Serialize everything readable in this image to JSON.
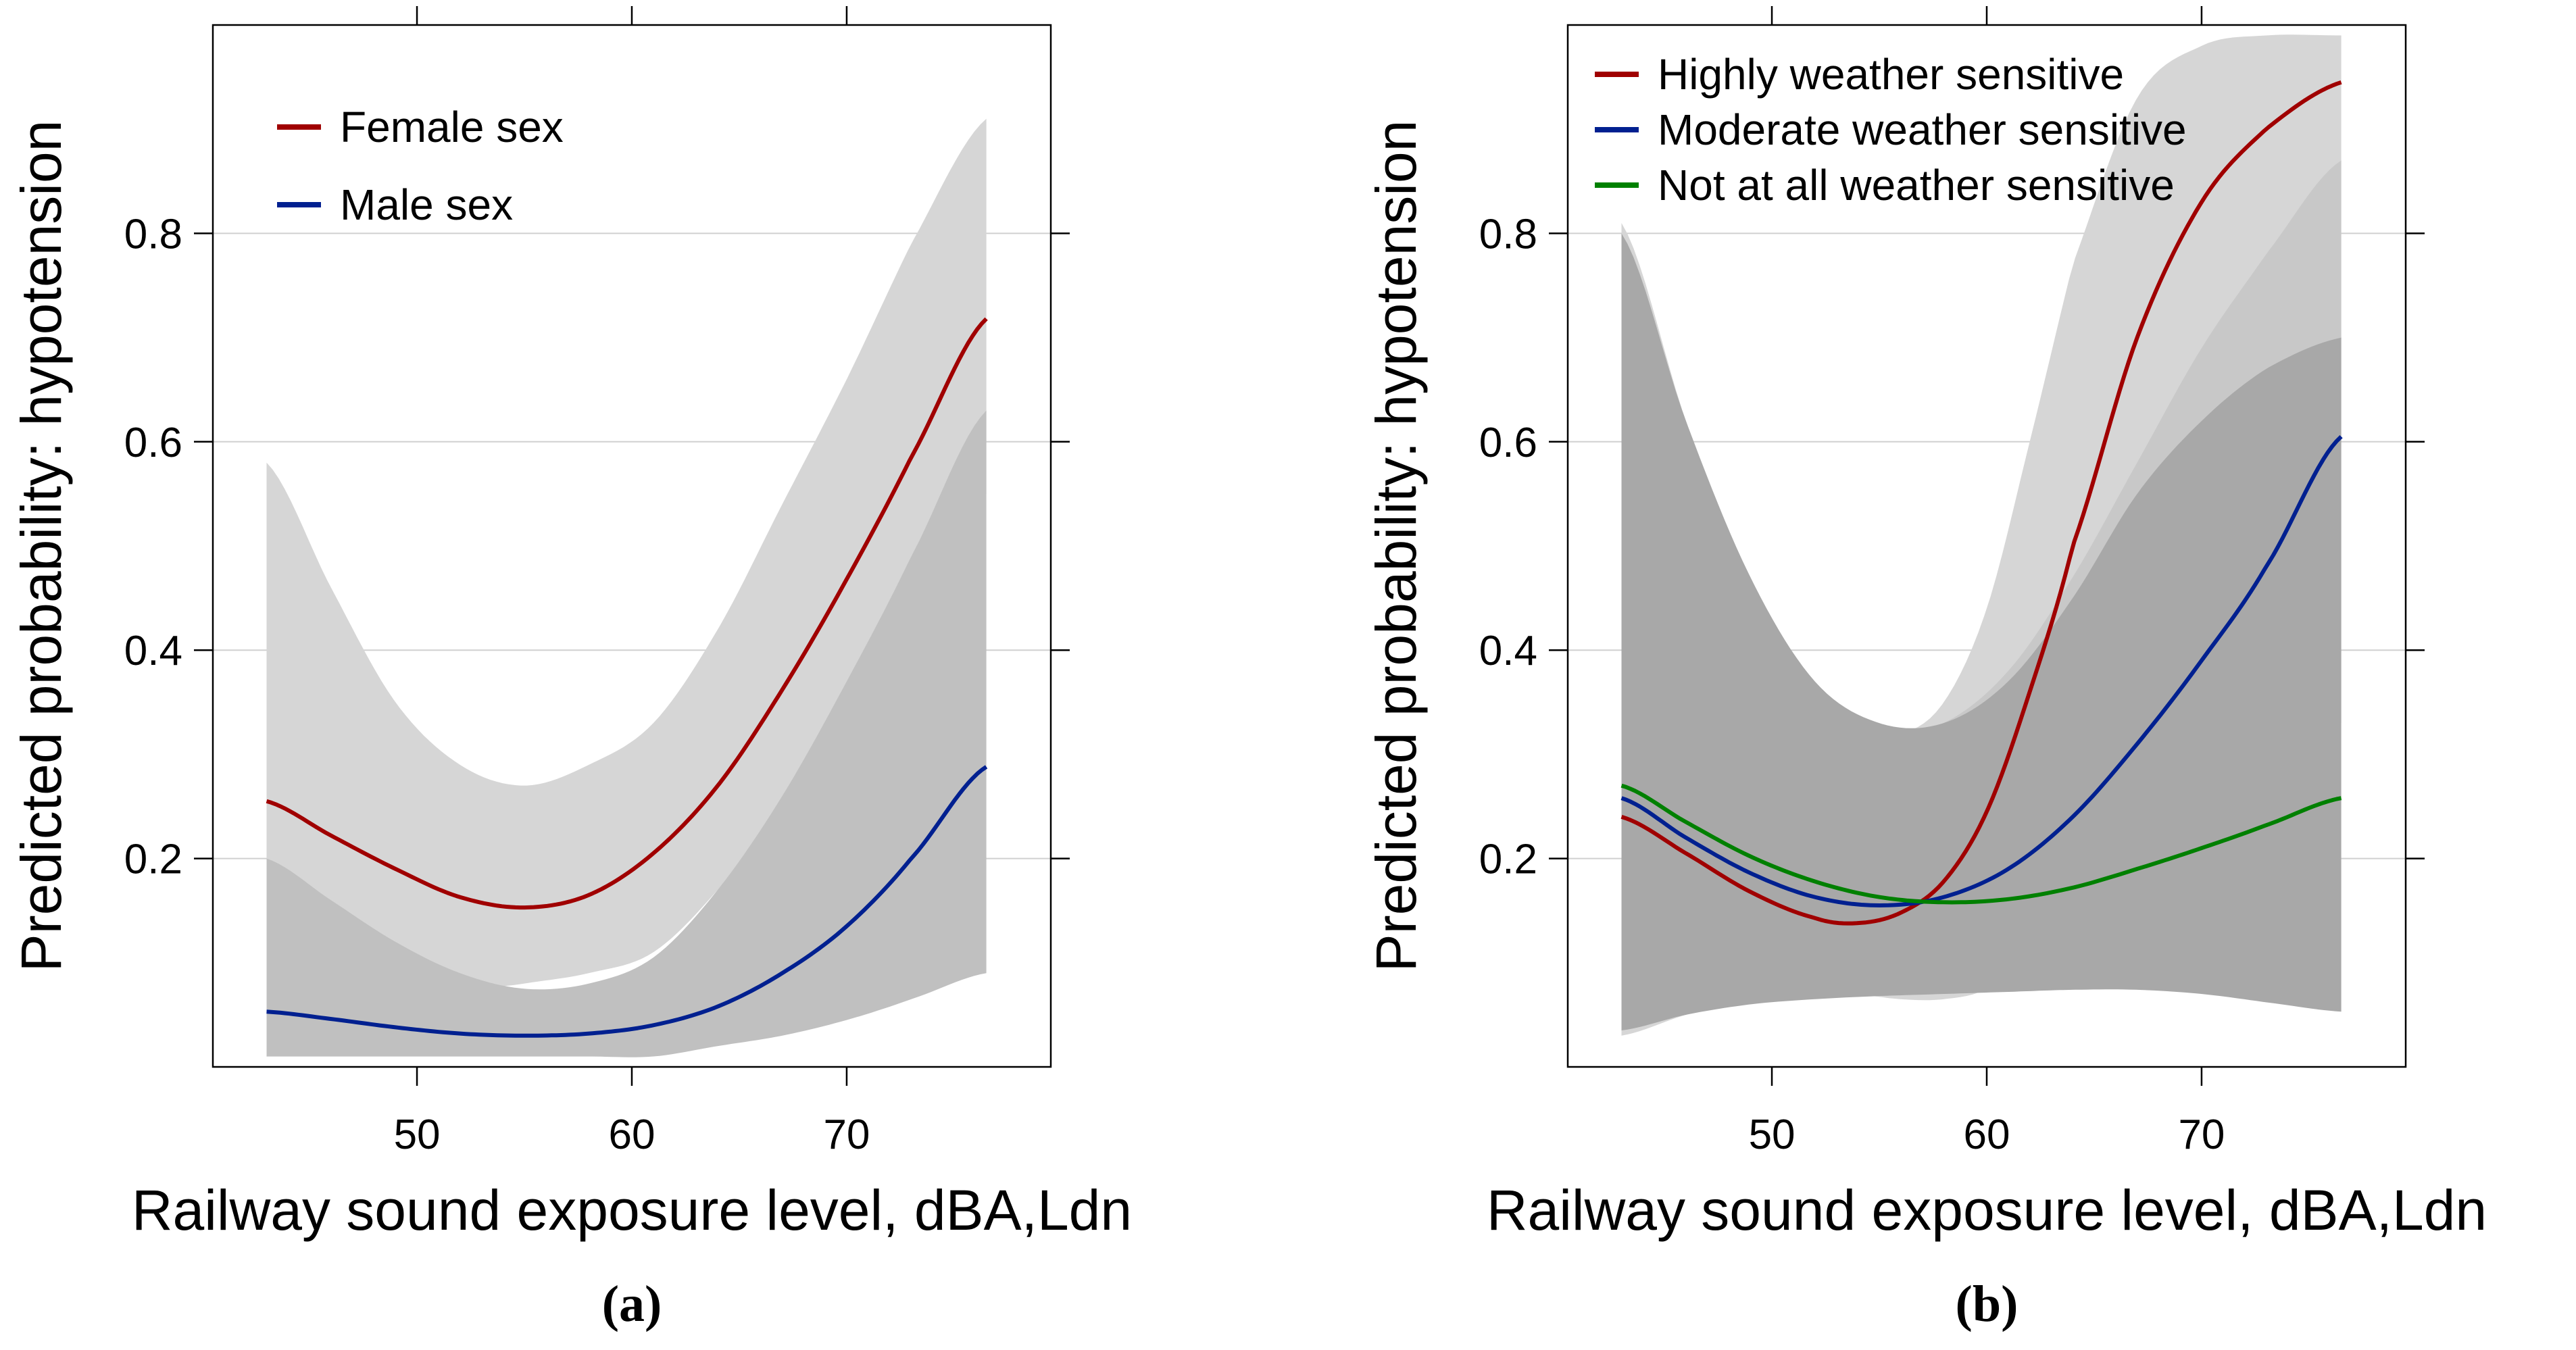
{
  "chart_data": [
    {
      "type": "line",
      "panel_label": "(a)",
      "xlabel": "Railway sound exposure level, dBA,Ldn",
      "ylabel": "Predicted probability: hypotension",
      "xlim": [
        40.5,
        79.5
      ],
      "ylim": [
        0.0,
        1.0
      ],
      "xticks": [
        50,
        60,
        70
      ],
      "yticks": [
        0.2,
        0.4,
        0.6,
        0.8
      ],
      "grid": "horizontal",
      "legend_position": "top-left",
      "series": [
        {
          "name": "Female sex",
          "color": "#a00000",
          "x": [
            43,
            46,
            49,
            52,
            55,
            58,
            61,
            64,
            67,
            70,
            73,
            76.5
          ],
          "y": [
            0.255,
            0.222,
            0.19,
            0.163,
            0.153,
            0.165,
            0.205,
            0.27,
            0.362,
            0.468,
            0.585,
            0.718
          ],
          "ci_lower": [
            0.01,
            0.02,
            0.04,
            0.07,
            0.08,
            0.09,
            0.11,
            0.17,
            0.25,
            0.34,
            0.45,
            0.55
          ],
          "ci_upper": [
            0.58,
            0.46,
            0.35,
            0.29,
            0.27,
            0.29,
            0.33,
            0.42,
            0.54,
            0.66,
            0.79,
            0.91
          ],
          "band_color": "#d6d6d6"
        },
        {
          "name": "Male sex",
          "color": "#002090",
          "x": [
            43,
            46,
            49,
            52,
            55,
            58,
            61,
            64,
            67,
            70,
            73,
            76.5
          ],
          "y": [
            0.053,
            0.046,
            0.038,
            0.032,
            0.03,
            0.032,
            0.04,
            0.058,
            0.09,
            0.135,
            0.2,
            0.288
          ],
          "ci_lower": [
            0.01,
            0.01,
            0.01,
            0.01,
            0.01,
            0.01,
            0.01,
            0.02,
            0.03,
            0.045,
            0.065,
            0.09
          ],
          "ci_upper": [
            0.2,
            0.16,
            0.12,
            0.09,
            0.075,
            0.08,
            0.105,
            0.17,
            0.26,
            0.37,
            0.49,
            0.63
          ],
          "band_color": "#c0c0c0"
        }
      ]
    },
    {
      "type": "line",
      "panel_label": "(b)",
      "xlabel": "Railway sound exposure level, dBA,Ldn",
      "ylabel": "Predicted probability: hypotension",
      "xlim": [
        40.5,
        79.5
      ],
      "ylim": [
        0.0,
        1.0
      ],
      "xticks": [
        50,
        60,
        70
      ],
      "yticks": [
        0.2,
        0.4,
        0.6,
        0.8
      ],
      "grid": "horizontal",
      "legend_position": "top",
      "series": [
        {
          "name": "Highly weather sensitive",
          "color": "#a00000",
          "x": [
            43,
            46,
            49,
            52,
            54,
            56,
            58,
            60,
            62,
            64,
            67,
            70,
            73,
            76.5
          ],
          "y": [
            0.24,
            0.205,
            0.168,
            0.143,
            0.138,
            0.148,
            0.178,
            0.245,
            0.36,
            0.5,
            0.7,
            0.83,
            0.9,
            0.945
          ],
          "ci_lower": [
            0.03,
            0.05,
            0.065,
            0.075,
            0.07,
            0.065,
            0.065,
            0.075,
            0.11,
            0.18,
            0.36,
            0.5,
            0.6,
            0.66
          ],
          "ci_upper": [
            0.81,
            0.62,
            0.46,
            0.36,
            0.33,
            0.32,
            0.35,
            0.44,
            0.6,
            0.77,
            0.93,
            0.98,
            0.99,
            0.99
          ],
          "band_color": "#d6d6d6"
        },
        {
          "name": "Moderate weather sensitive",
          "color": "#002090",
          "x": [
            43,
            46,
            49,
            52,
            55,
            58,
            61,
            64,
            67,
            70,
            73,
            76.5
          ],
          "y": [
            0.258,
            0.22,
            0.186,
            0.163,
            0.155,
            0.163,
            0.19,
            0.24,
            0.31,
            0.39,
            0.48,
            0.605
          ],
          "ci_lower": [
            0.04,
            0.06,
            0.075,
            0.08,
            0.075,
            0.075,
            0.08,
            0.09,
            0.12,
            0.17,
            0.24,
            0.33
          ],
          "ci_upper": [
            0.7,
            0.55,
            0.43,
            0.35,
            0.32,
            0.33,
            0.38,
            0.47,
            0.58,
            0.69,
            0.78,
            0.87
          ],
          "band_color": "#c8c8c8"
        },
        {
          "name": "Not at all weather sensitive",
          "color": "#008000",
          "x": [
            43,
            46,
            49,
            52,
            55,
            58,
            61,
            64,
            67,
            70,
            73,
            76.5
          ],
          "y": [
            0.27,
            0.235,
            0.202,
            0.178,
            0.163,
            0.158,
            0.161,
            0.172,
            0.19,
            0.21,
            0.232,
            0.258
          ],
          "ci_lower": [
            0.035,
            0.05,
            0.06,
            0.065,
            0.068,
            0.07,
            0.072,
            0.074,
            0.074,
            0.07,
            0.062,
            0.053
          ],
          "ci_upper": [
            0.8,
            0.62,
            0.47,
            0.37,
            0.33,
            0.33,
            0.37,
            0.45,
            0.55,
            0.62,
            0.67,
            0.7
          ],
          "band_color": "#a8a8a8"
        }
      ]
    }
  ]
}
